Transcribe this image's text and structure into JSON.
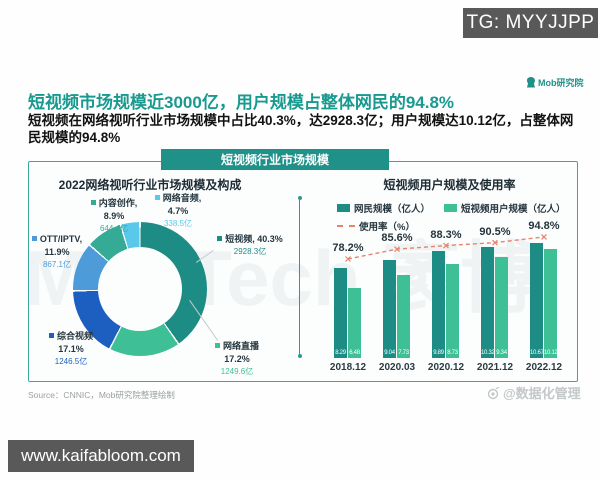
{
  "overlays": {
    "tg": "TG: MYYJJPP",
    "url": "www.kaifabloom.com",
    "weibo": "@数据化管理",
    "watermark": "MobTech 袤博"
  },
  "header": {
    "logo": "Mob研究院",
    "title": "短视频市场规模近3000亿，用户规模占整体网民的94.8%",
    "subtitle": "短视频在网络视听行业市场规模中占比40.3%，达2928.3亿；用户规模达10.12亿，占整体网民规模的94.8%"
  },
  "banner": "短视频行业市场规模",
  "source": "Source：CNNIC，Mob研究院整理绘制",
  "colors": {
    "accent_teal": "#1f9189",
    "title_teal": "#189a90",
    "bar_dark": "#1c8c85",
    "bar_green": "#3fbf95",
    "line_salmon": "#e8836c"
  },
  "chart_data": [
    {
      "type": "pie",
      "title": "2022网络视听行业市场规模及构成",
      "unit": "亿",
      "slices": [
        {
          "name": "短视频",
          "pct": 40.3,
          "value": 2928.3,
          "color": "#1c8c85",
          "lines": [
            "短视频, 40.3%",
            "2928.3亿"
          ]
        },
        {
          "name": "网络直播",
          "pct": 17.2,
          "value": 1249.6,
          "color": "#3fbf95",
          "lines": [
            "网络直播",
            "17.2%",
            "1249.6亿"
          ]
        },
        {
          "name": "综合视频",
          "pct": 17.1,
          "value": 1246.5,
          "color": "#1d5fc0",
          "lines": [
            "综合视频",
            "17.1%",
            "1246.5亿"
          ]
        },
        {
          "name": "OTT/IPTV",
          "pct": 11.9,
          "value": 867.1,
          "color": "#4d9bd9",
          "lines": [
            "OTT/IPTV,",
            "11.9%",
            "867.1亿"
          ]
        },
        {
          "name": "内容创作",
          "pct": 8.9,
          "value": 644.4,
          "color": "#35ab96",
          "lines": [
            "内容创作,",
            "8.9%",
            "644.4亿"
          ]
        },
        {
          "name": "网络音频",
          "pct": 4.7,
          "value": 338.5,
          "color": "#5ac8ea",
          "lines": [
            "网络音频,",
            "4.7%",
            "338.5亿"
          ]
        }
      ]
    },
    {
      "type": "bar",
      "title": "短视频用户规模及使用率",
      "categories": [
        "2018.12",
        "2020.03",
        "2020.12",
        "2021.12",
        "2022.12"
      ],
      "series": [
        {
          "name": "网民规模（亿人）",
          "color": "#1c8c85",
          "values": [
            8.29,
            9.04,
            9.89,
            10.32,
            10.67
          ]
        },
        {
          "name": "短视频用户规模（亿人）",
          "color": "#3fbf95",
          "values": [
            6.48,
            7.73,
            8.73,
            9.34,
            10.12
          ]
        }
      ],
      "line": {
        "name": "使用率（%）",
        "color": "#e8836c",
        "values": [
          78.2,
          85.6,
          88.3,
          90.5,
          94.8
        ]
      },
      "ylim": [
        0,
        11
      ],
      "legend_position": "top",
      "grid": false
    }
  ]
}
